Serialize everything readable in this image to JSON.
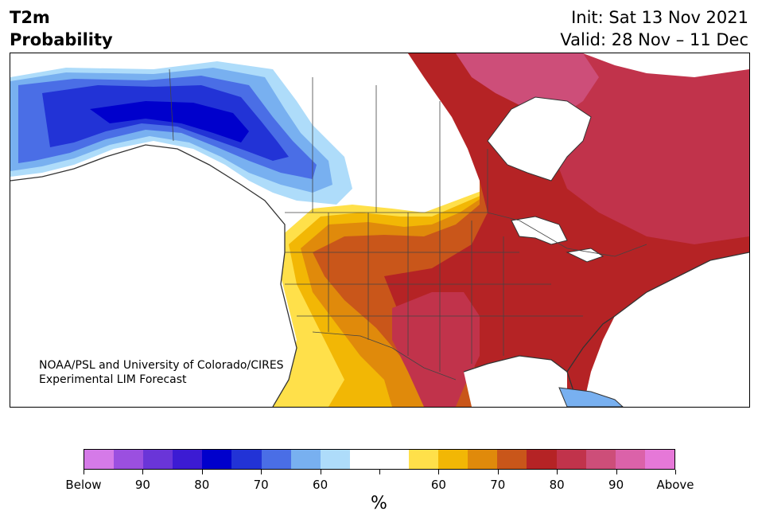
{
  "header": {
    "variable": "T2m",
    "product": "Probability",
    "init": "Init: Sat 13 Nov 2021",
    "valid": "Valid: 28 Nov – 11 Dec"
  },
  "credit": {
    "line1": "NOAA/PSL and University of Colorado/CIRES",
    "line2": "Experimental LIM Forecast"
  },
  "legend": {
    "units": "%",
    "colors": [
      "#d57ae8",
      "#9b4fe0",
      "#6a35d8",
      "#3c1bd3",
      "#0000cc",
      "#2233d6",
      "#4a6ee6",
      "#78b0f0",
      "#aedcfa",
      "#ffffff",
      "#ffffff",
      "#ffe04a",
      "#f2b705",
      "#e08a0b",
      "#c9561a",
      "#b52325",
      "#c1334b",
      "#cd4e79",
      "#db62a9",
      "#e678d8"
    ],
    "tick_labels": [
      "Below",
      "90",
      "80",
      "70",
      "60",
      "",
      "60",
      "70",
      "80",
      "90",
      "Above"
    ]
  },
  "map": {
    "region": "North America",
    "colors": {
      "below_strong": "#0000cc",
      "below_mid": "#2233d6",
      "below_light": "#78b0f0",
      "below_faint": "#aedcfa",
      "near_normal": "#ffffff",
      "above_faint": "#ffe04a",
      "above_60": "#f2b705",
      "above_70": "#e08a0b",
      "above_75": "#c9561a",
      "above_80": "#b52325",
      "above_85": "#c1334b",
      "above_90": "#cd4e79",
      "border": "#333333"
    }
  }
}
